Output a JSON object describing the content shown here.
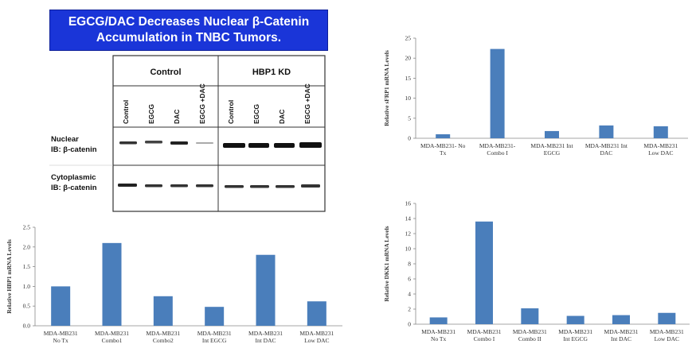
{
  "banner": {
    "line1": "EGCG/DAC Decreases Nuclear β-Catenin",
    "line2": "Accumulation in TNBC Tumors."
  },
  "blot": {
    "group_control": "Control",
    "group_kd": "HBP1 KD",
    "lanes": [
      "Control",
      "EGCG",
      "DAC",
      "EGCG +DAC",
      "Control",
      "EGCG",
      "DAC",
      "EGCG +DAC"
    ],
    "rows": [
      {
        "label1": "Nuclear",
        "label2": "IB: β-catenin"
      },
      {
        "label1": "Cytoplasmic",
        "label2": "IB: β-catenin"
      }
    ]
  },
  "chart_data": [
    {
      "id": "hbp1",
      "type": "bar",
      "categories": [
        [
          "MDA-MB231",
          "No Tx"
        ],
        [
          "MDA-MB231",
          "Combo1"
        ],
        [
          "MDA-MB231",
          "Combo2"
        ],
        [
          "MDA-MB231",
          "Int EGCG"
        ],
        [
          "MDA-MB231",
          "Int DAC"
        ],
        [
          "MDA-MB231",
          "Low DAC"
        ]
      ],
      "values": [
        1.0,
        2.1,
        0.75,
        0.48,
        1.8,
        0.62
      ],
      "ylabel": "Relative HBP1 mRNA Levels",
      "ylim": [
        0,
        2.5
      ],
      "yticks": [
        "0.0",
        "0.5",
        "1.0",
        "1.5",
        "2.0",
        "2.5"
      ],
      "bar_color": "#4a7ebb"
    },
    {
      "id": "sfrp1",
      "type": "bar",
      "categories": [
        [
          "MDA-MB231- No",
          "Tx"
        ],
        [
          "MDA-MB231-",
          "Combo I"
        ],
        [
          "MDA-MB231 Int",
          "EGCG"
        ],
        [
          "MDA-MB231 Int",
          "DAC"
        ],
        [
          "MDA-MB231",
          "Low DAC"
        ]
      ],
      "values": [
        1.0,
        22.3,
        1.8,
        3.2,
        3.0
      ],
      "ylabel": "Relative sFRP1 mRNA Levels",
      "ylim": [
        0,
        25
      ],
      "yticks": [
        "0",
        "5",
        "10",
        "15",
        "20",
        "25"
      ],
      "bar_color": "#4a7ebb"
    },
    {
      "id": "dkk1",
      "type": "bar",
      "categories": [
        [
          "MDA-MB231",
          "No Tx"
        ],
        [
          "MDA-MB231",
          "Combo I"
        ],
        [
          "MDA-MB231",
          "Combo II"
        ],
        [
          "MDA-MB231",
          "Int EGCG"
        ],
        [
          "MDA-MB231",
          "Int DAC"
        ],
        [
          "MDA-MB231",
          "Low DAC"
        ]
      ],
      "values": [
        0.9,
        13.6,
        2.1,
        1.1,
        1.2,
        1.5
      ],
      "ylabel": "Relative DKK1 mRNA Levels",
      "ylim": [
        0,
        16
      ],
      "yticks": [
        "0",
        "2",
        "4",
        "6",
        "8",
        "10",
        "12",
        "14",
        "16"
      ],
      "bar_color": "#4a7ebb"
    }
  ]
}
